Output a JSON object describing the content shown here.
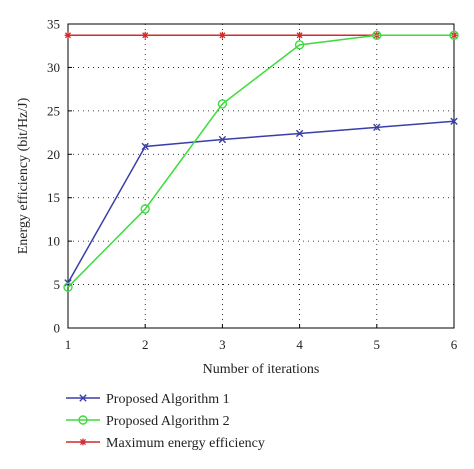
{
  "chart_data": {
    "type": "line",
    "xlabel": "Number of iterations",
    "ylabel": "Energy efficiency (bit/Hz/J)",
    "x": [
      1,
      2,
      3,
      4,
      5,
      6
    ],
    "xlim": [
      1,
      6
    ],
    "ylim": [
      0,
      35
    ],
    "xticks": [
      "1",
      "2",
      "3",
      "4",
      "5",
      "6"
    ],
    "yticks": [
      "0",
      "5",
      "10",
      "15",
      "20",
      "25",
      "30",
      "35"
    ],
    "grid": true,
    "legend_position": "below plot",
    "series": [
      {
        "name": "Proposed Algorithm 1",
        "values": [
          5.2,
          20.9,
          21.7,
          22.4,
          23.1,
          23.8
        ],
        "color": "#3a3fa8",
        "marker": "x"
      },
      {
        "name": "Proposed Algorithm 2",
        "values": [
          4.7,
          13.7,
          25.8,
          32.6,
          33.7,
          33.7
        ],
        "color": "#3ddc3d",
        "marker": "circle"
      },
      {
        "name": "Maximum energy efficiency",
        "values": [
          33.7,
          33.7,
          33.7,
          33.7,
          33.7,
          33.7
        ],
        "color": "#d42a2a",
        "marker": "star"
      }
    ]
  }
}
